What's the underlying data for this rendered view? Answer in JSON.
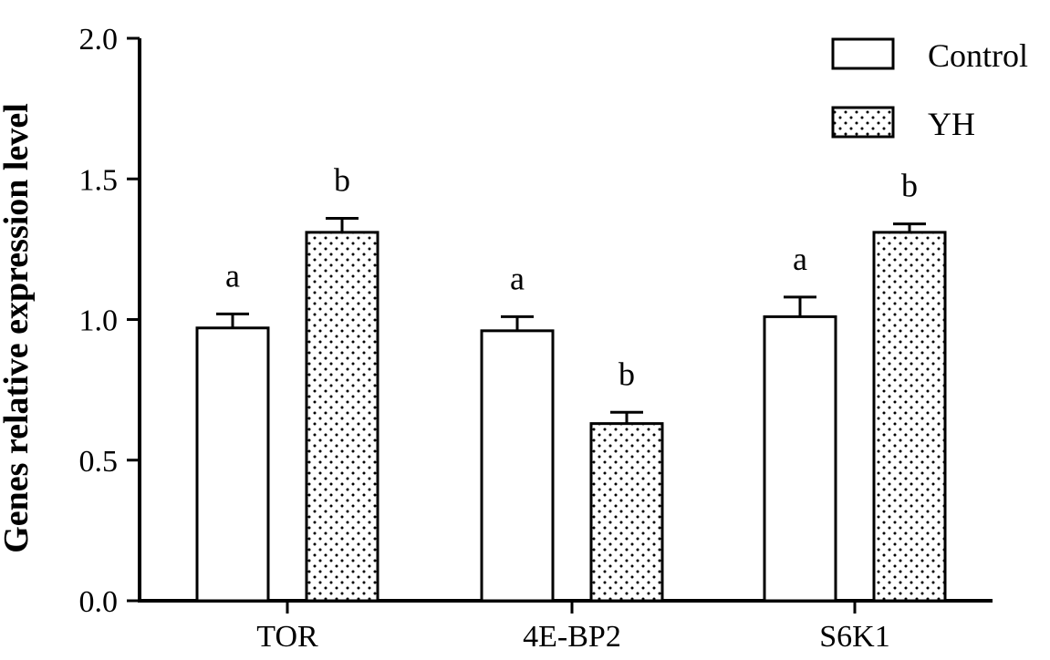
{
  "chart_data": {
    "type": "bar",
    "ylabel": "Genes relative expression level",
    "xlabel": "",
    "ylim": [
      0,
      2.0
    ],
    "yticks": [
      "0.0",
      "0.5",
      "1.0",
      "1.5",
      "2.0"
    ],
    "categories": [
      "TOR",
      "4E-BP2",
      "S6K1"
    ],
    "series": [
      {
        "name": "Control",
        "pattern": "solid-white",
        "values": [
          0.97,
          0.96,
          1.01
        ],
        "errors": [
          0.05,
          0.05,
          0.07
        ],
        "labels": [
          "a",
          "a",
          "a"
        ]
      },
      {
        "name": "YH",
        "pattern": "dotted",
        "values": [
          1.31,
          0.63,
          1.31
        ],
        "errors": [
          0.05,
          0.04,
          0.03
        ],
        "labels": [
          "b",
          "b",
          "b"
        ]
      }
    ],
    "legend_position": "top-right",
    "grid": false
  }
}
